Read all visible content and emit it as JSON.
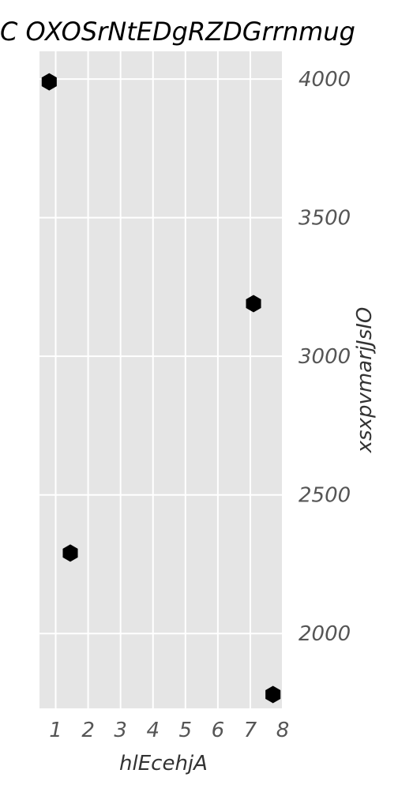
{
  "chart_data": {
    "type": "scatter",
    "title": "C OXOSrNtEDgRZDGrrnmug",
    "xlabel": "hlEcehjA",
    "ylabel": "xsxpvmarjJsIO",
    "xlim": [
      0.5,
      8.0
    ],
    "ylim": [
      1730,
      4100
    ],
    "x_ticks": [
      "1",
      "2",
      "3",
      "4",
      "5",
      "6",
      "7",
      "8"
    ],
    "y_ticks": [
      "2000",
      "2500",
      "3000",
      "3500",
      "4000"
    ],
    "grid": true,
    "y_axis_side": "right",
    "marker": "hexagon",
    "marker_color": "#000000",
    "panel_color": "#e5e5e5",
    "points": [
      {
        "x": 0.8,
        "y": 3990
      },
      {
        "x": 1.45,
        "y": 2290
      },
      {
        "x": 7.1,
        "y": 3190
      },
      {
        "x": 7.7,
        "y": 1780
      }
    ]
  }
}
